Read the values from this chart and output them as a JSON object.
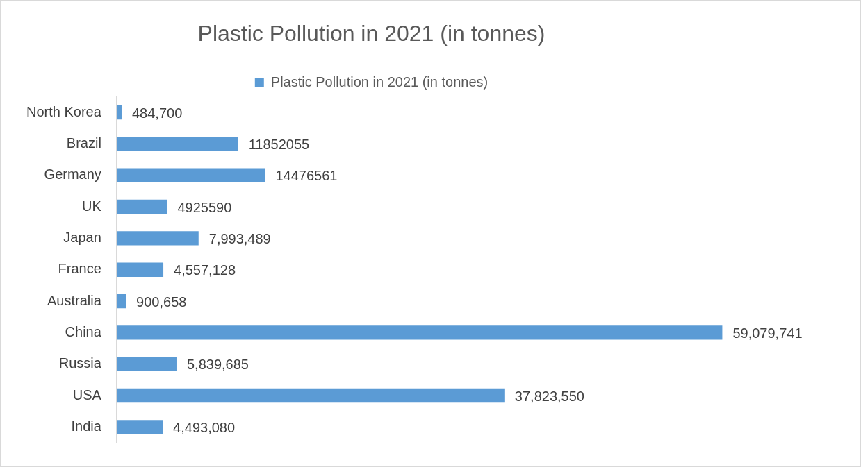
{
  "chart_data": {
    "type": "bar",
    "orientation": "horizontal",
    "title": "Plastic Pollution in 2021 (in tonnes)",
    "legend": "top",
    "categories": [
      "North Korea",
      "Brazil",
      "Germany",
      "UK",
      "Japan",
      "France",
      "Australia",
      "China",
      "Russia",
      "USA",
      "India"
    ],
    "series": [
      {
        "name": "Plastic Pollution in 2021 (in tonnes)",
        "color": "#5b9bd5",
        "values": [
          484700,
          11852055,
          14476561,
          4925590,
          7993489,
          4557128,
          900658,
          59079741,
          5839685,
          37823550,
          4493080
        ],
        "value_labels": [
          "484,700",
          "11852055",
          "14476561",
          "4925590",
          "7,993,489",
          "4,557,128",
          "900,658",
          "59,079,741",
          "5,839,685",
          "37,823,550",
          "4,493,080"
        ]
      }
    ]
  }
}
